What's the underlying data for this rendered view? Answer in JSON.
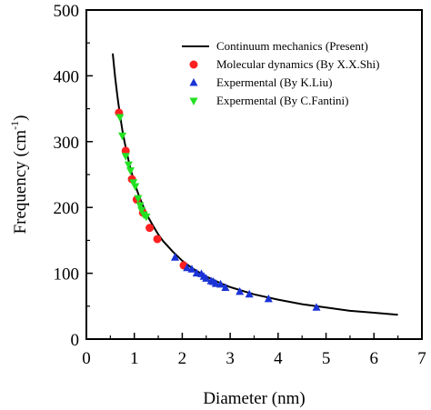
{
  "chart_data": {
    "type": "scatter",
    "xlabel": "Diameter (nm)",
    "ylabel": "Frequency (cm",
    "ylabel_sup": "-1",
    "xlim": [
      0,
      7
    ],
    "ylim": [
      0,
      500
    ],
    "xticks": [
      0,
      1,
      2,
      3,
      4,
      5,
      6,
      7
    ],
    "yticks": [
      0,
      100,
      200,
      300,
      400,
      500
    ],
    "grid": false,
    "legend_position": "top-right",
    "colors": {
      "curve": "#000000",
      "md": "#ff2020",
      "liu": "#1a33d6",
      "fantini": "#22e022"
    },
    "series": [
      {
        "name": "Continuum mechanics (Present)",
        "kind": "line",
        "x": [
          0.55,
          0.6,
          0.65,
          0.7,
          0.75,
          0.8,
          0.9,
          1.0,
          1.1,
          1.2,
          1.3,
          1.4,
          1.5,
          1.6,
          1.8,
          2.0,
          2.2,
          2.5,
          2.8,
          3.0,
          3.5,
          4.0,
          4.5,
          5.0,
          5.5,
          6.0,
          6.5
        ],
        "y": [
          434,
          398,
          367,
          341,
          318,
          298,
          265,
          238,
          217,
          199,
          184,
          171,
          159,
          149,
          133,
          119,
          108,
          95,
          85,
          79,
          68,
          60,
          53,
          48,
          43,
          40,
          37
        ]
      },
      {
        "name": "Molecular dynamics (By X.X.Shi)",
        "kind": "circle",
        "x": [
          0.68,
          0.82,
          0.95,
          1.05,
          1.18,
          1.32,
          1.48,
          2.03
        ],
        "y": [
          344,
          286,
          243,
          212,
          192,
          169,
          152,
          112
        ]
      },
      {
        "name": "Expermental (By K.Liu)",
        "kind": "triangle-up",
        "x": [
          1.85,
          2.1,
          2.2,
          2.3,
          2.4,
          2.45,
          2.5,
          2.6,
          2.65,
          2.7,
          2.8,
          2.9,
          3.2,
          3.4,
          3.8,
          4.8
        ],
        "y": [
          124,
          108,
          106,
          100,
          99,
          95,
          92,
          88,
          87,
          84,
          83,
          78,
          72,
          68,
          61,
          48
        ]
      },
      {
        "name": "Expermental (By C.Fantini)",
        "kind": "triangle-down",
        "x": [
          0.7,
          0.75,
          0.82,
          0.88,
          0.92,
          0.98,
          1.02,
          1.08,
          1.12,
          1.15,
          1.2,
          1.25
        ],
        "y": [
          337,
          309,
          278,
          265,
          256,
          238,
          232,
          214,
          203,
          196,
          189,
          186
        ]
      }
    ]
  }
}
